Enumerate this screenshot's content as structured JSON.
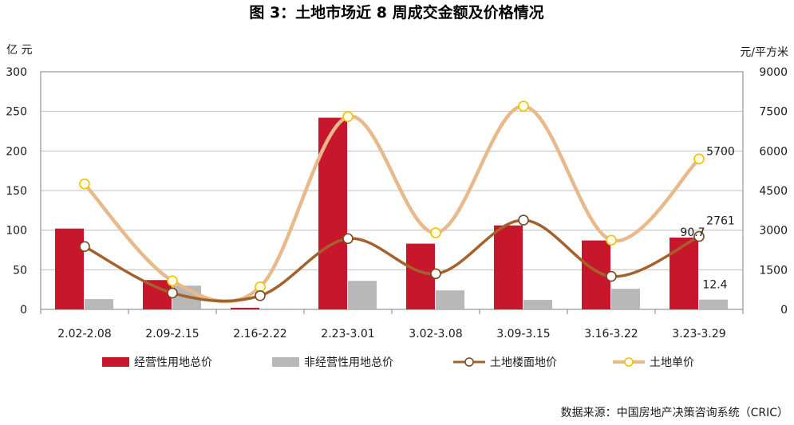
{
  "chart_data": {
    "type": "bar",
    "title": "图 3：土地市场近 8 周成交金额及价格情况",
    "left_unit": "亿 元",
    "right_unit": "元/平方米",
    "categories": [
      "2.02-2.08",
      "2.09-2.15",
      "2.16-2.22",
      "2.23-3.01",
      "3.02-3.08",
      "3.09-3.15",
      "3.16-3.22",
      "3.23-3.29"
    ],
    "left_ylim": [
      0,
      300
    ],
    "left_ticks": [
      "0",
      "50",
      "100",
      "150",
      "200",
      "250",
      "300"
    ],
    "right_ylim": [
      0,
      9000
    ],
    "right_ticks": [
      "0",
      "1500",
      "3000",
      "4500",
      "6000",
      "7500",
      "9000"
    ],
    "grid": true,
    "bar_series": [
      {
        "name": "经营性用地总价",
        "axis": "left",
        "color": "#C8162C",
        "values": [
          102,
          37,
          2,
          242,
          83,
          106,
          87,
          90.7
        ]
      },
      {
        "name": "非经营性用地总价",
        "axis": "left",
        "color": "#B8B8B8",
        "values": [
          13,
          30,
          1,
          36,
          24,
          12,
          26,
          12.4
        ]
      }
    ],
    "line_series": [
      {
        "name": "土地楼面地价",
        "axis": "right",
        "color": "#A5612B",
        "marker_fill": "#ffffff",
        "marker_stroke": "#7A4A22",
        "values": [
          2380,
          620,
          520,
          2680,
          1350,
          3380,
          1250,
          2761
        ]
      },
      {
        "name": "土地单价",
        "axis": "right",
        "color": "#E8B98A",
        "marker_fill": "#FFFDE6",
        "marker_stroke": "#F2C200",
        "values": [
          4750,
          1080,
          850,
          7300,
          2900,
          7700,
          2620,
          5700
        ]
      }
    ],
    "data_labels": [
      "90.7",
      "12.4",
      "2761",
      "5700"
    ],
    "legend": {
      "placement": "bottom",
      "items": [
        "经营性用地总价",
        "非经营性用地总价",
        "土地楼面地价",
        "土地单价"
      ]
    },
    "source": "数据来源：中国房地产决策咨询系统（CRIC）"
  }
}
